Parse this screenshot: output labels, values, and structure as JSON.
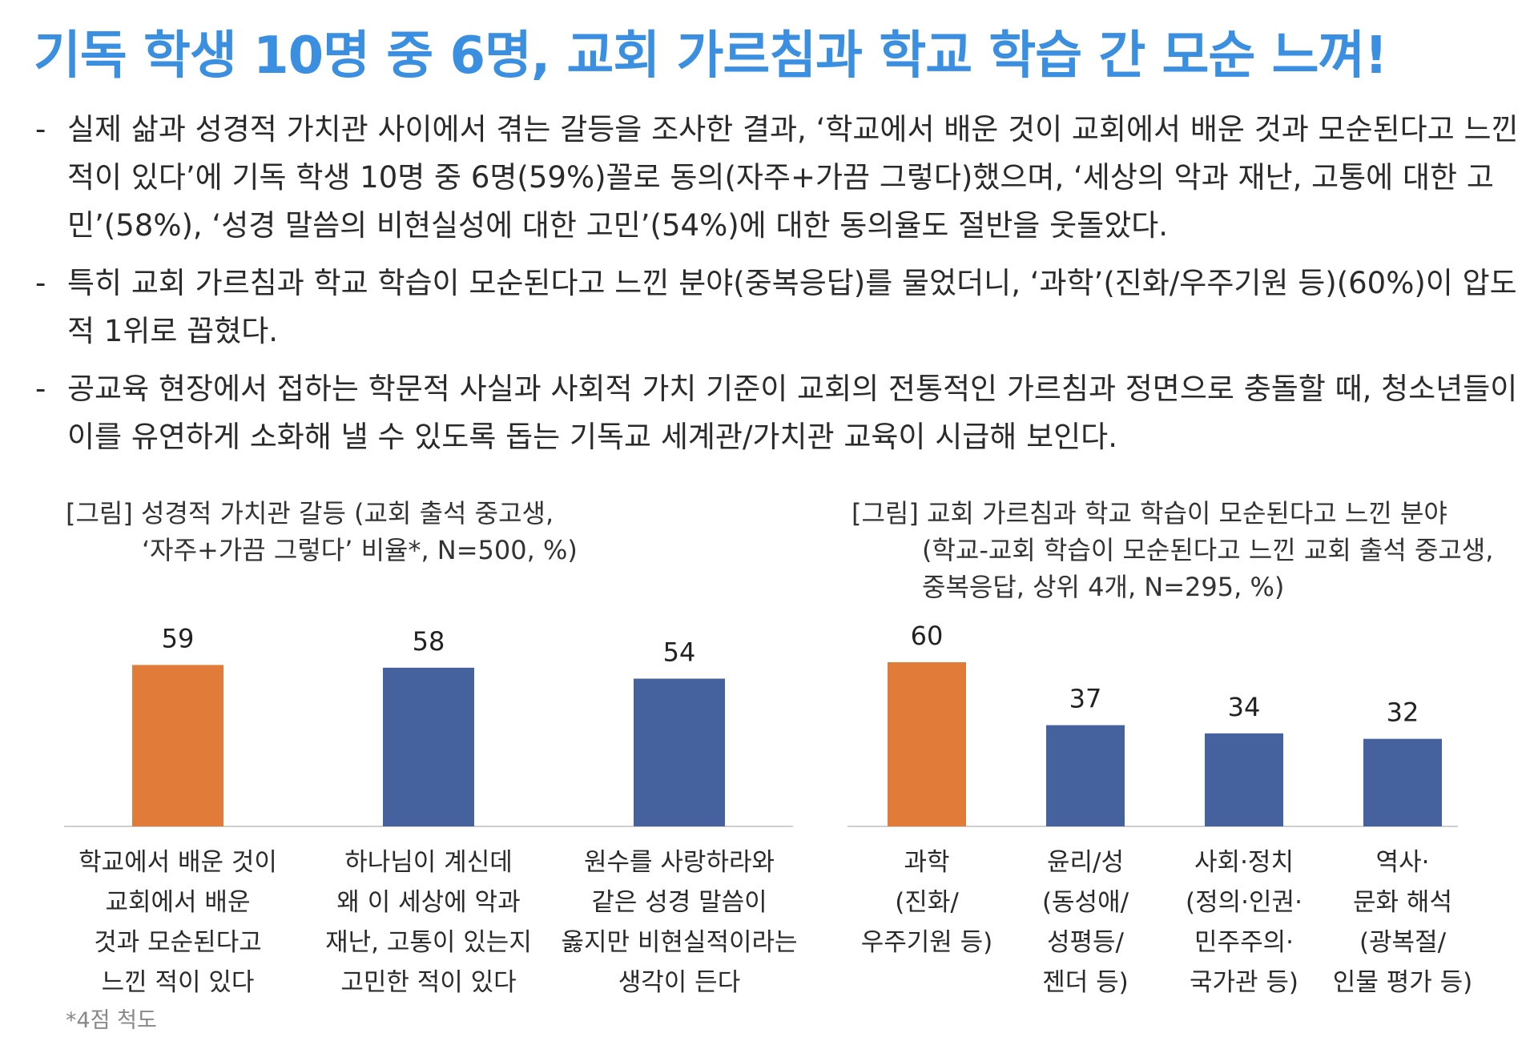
{
  "title": "기독 학생 10명 중 6명, 교회 가르침과 학교 학습 간 모순 느껴!",
  "bullets": [
    {
      "dash": "-",
      "text": "실제 삶과 성경적 가치관 사이에서 겪는 갈등을 조사한 결과, ‘학교에서 배운 것이 교회에서 배운 것과 모순된다고 느낀 적이 있다’에 기독 학생 10명 중 6명(59%)꼴로 동의(자주+가끔 그렇다)했으며, ‘세상의 악과 재난, 고통에 대한 고민’(58%), ‘성경 말씀의 비현실성에 대한 고민’(54%)에 대한 동의율도 절반을 웃돌았다."
    },
    {
      "dash": "-",
      "text": "특히 교회 가르침과 학교 학습이 모순된다고 느낀 분야(중복응답)를 물었더니, ‘과학’(진화/우주기원 등)(60%)이 압도적 1위로 꼽혔다."
    },
    {
      "dash": "-",
      "text": "공교육 현장에서 접하는 학문적 사실과 사회적 가치 기준이 교회의 전통적인 가르침과 정면으로 충돌할 때, 청소년들이 이를 유연하게 소화해 낼 수 있도록 돕는 기독교 세계관/가치관 교육이 시급해 보인다."
    }
  ],
  "chart_data": [
    {
      "type": "bar",
      "title_line1": "[그림] 성경적 가치관 갈등 (교회 출석 중고생,",
      "title_line2": "‘자주+가끔 그렇다’ 비율*, N=500, %)",
      "categories": [
        "학교에서 배운 것이\n교회에서 배운\n것과 모순된다고\n느낀 적이 있다",
        "하나님이 계신데\n왜 이 세상에 악과\n재난, 고통이 있는지\n고민한 적이 있다",
        "원수를 사랑하라와\n같은 성경 말씀이\n옳지만 비현실적이라는\n생각이 든다"
      ],
      "values": [
        59,
        58,
        54
      ],
      "colors": [
        "#e07b3a",
        "#46629e",
        "#46629e"
      ],
      "ylim": [
        0,
        60
      ]
    },
    {
      "type": "bar",
      "title_line1": "[그림] 교회 가르침과 학교 학습이 모순된다고 느낀 분야",
      "title_line2": "(학교-교회 학습이 모순된다고 느낀 교회 출석 중고생,",
      "title_line3": "중복응답, 상위 4개, N=295, %)",
      "categories": [
        "과학\n(진화/\n우주기원 등)",
        "윤리/성\n(동성애/\n성평등/\n젠더 등)",
        "사회·정치\n(정의·인권·\n민주주의·\n국가관 등)",
        "역사·\n문화 해석\n(광복절/\n인물 평가 등)"
      ],
      "values": [
        60,
        37,
        34,
        32
      ],
      "colors": [
        "#e07b3a",
        "#46629e",
        "#46629e",
        "#46629e"
      ],
      "ylim": [
        0,
        60
      ]
    }
  ],
  "footnote": "*4점 척도"
}
